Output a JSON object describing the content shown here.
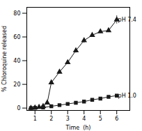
{
  "chart_data": {
    "type": "line",
    "xlabel": "Time  (h)",
    "ylabel": "% Chloroquine released",
    "xlim": [
      0.5,
      6.8
    ],
    "ylim": [
      -2,
      85
    ],
    "xticks": [
      1,
      2,
      3,
      4,
      5,
      6
    ],
    "yticks": [
      0,
      20,
      40,
      60,
      80
    ],
    "series": [
      {
        "name": "pH 7.4",
        "color": "#1a1a1a",
        "marker": "triangle",
        "line_style": "solid",
        "x": [
          0.75,
          1.0,
          1.25,
          1.5,
          1.75,
          2.0,
          2.5,
          3.0,
          3.5,
          4.0,
          4.5,
          5.0,
          5.5,
          6.0
        ],
        "values": [
          0.0,
          0.3,
          0.8,
          1.5,
          4.5,
          21.5,
          30.5,
          38.5,
          48.5,
          57.0,
          61.5,
          64.5,
          65.5,
          74.5
        ],
        "yerr": [
          0.2,
          0.2,
          0.3,
          0.4,
          0.6,
          1.0,
          1.3,
          1.6,
          2.0,
          2.2,
          1.5,
          1.2,
          1.0,
          3.5
        ]
      },
      {
        "name": "pH 1.0",
        "color": "#1a1a1a",
        "marker": "square",
        "line_style": "solid",
        "x": [
          0.75,
          1.0,
          1.5,
          2.0,
          2.5,
          3.0,
          3.5,
          4.0,
          4.5,
          5.0,
          5.5,
          6.0
        ],
        "values": [
          0.0,
          0.2,
          0.5,
          1.5,
          2.5,
          3.5,
          4.5,
          5.5,
          7.0,
          8.0,
          9.5,
          10.5
        ],
        "yerr": [
          0.15,
          0.15,
          0.2,
          0.25,
          0.3,
          0.3,
          0.3,
          0.4,
          0.4,
          0.4,
          0.4,
          0.5
        ]
      }
    ],
    "annotations": [
      {
        "text": "pH 7.4",
        "x": 6.08,
        "y": 74.5
      },
      {
        "text": "pH 1.0",
        "x": 6.08,
        "y": 10.5
      }
    ]
  }
}
